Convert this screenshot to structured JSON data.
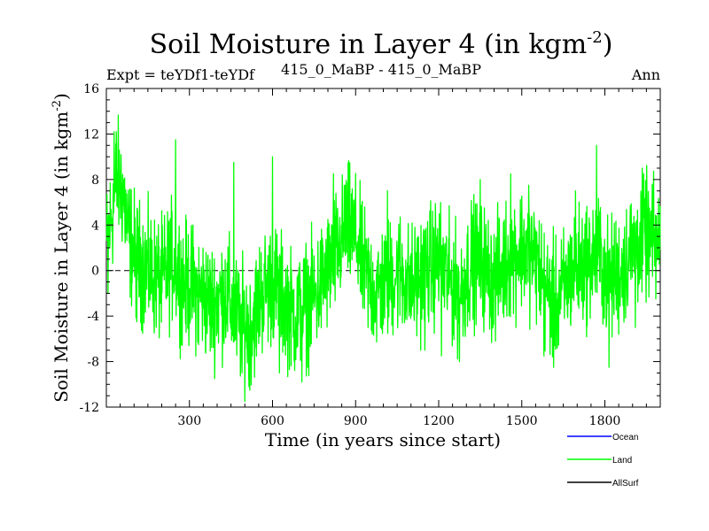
{
  "chart_data": {
    "type": "line",
    "title": "Soil Moisture in Layer 4 (in kgm",
    "title_sup": "-2",
    "title_close": ")",
    "subtitle_left": "Expt = teYDf1-teYDf",
    "subtitle_center": "415_0_MaBP - 415_0_MaBP",
    "subtitle_right": "Ann",
    "xlabel": "Time (in years since start)",
    "ylabel": "Soil Moisture in Layer 4 (in kgm",
    "ylabel_sup": "-2",
    "ylabel_close": ")",
    "xlim": [
      0,
      2000
    ],
    "ylim": [
      -12,
      16
    ],
    "xticks": [
      300,
      600,
      900,
      1200,
      1500,
      1800
    ],
    "yticks": [
      -12,
      -8,
      -4,
      0,
      4,
      8,
      12,
      16
    ],
    "zero_line": true,
    "series": [
      {
        "name": "Land",
        "color": "#00ff00",
        "anchors": [
          [
            0,
            2
          ],
          [
            20,
            5
          ],
          [
            40,
            8
          ],
          [
            60,
            7
          ],
          [
            80,
            3
          ],
          [
            110,
            1
          ],
          [
            150,
            0
          ],
          [
            200,
            -1
          ],
          [
            240,
            1
          ],
          [
            280,
            -1
          ],
          [
            320,
            -1.5
          ],
          [
            380,
            -3
          ],
          [
            430,
            -2
          ],
          [
            480,
            -4.5
          ],
          [
            520,
            -5
          ],
          [
            560,
            -2
          ],
          [
            600,
            -1
          ],
          [
            640,
            -2.5
          ],
          [
            680,
            -4
          ],
          [
            720,
            -3
          ],
          [
            760,
            -2
          ],
          [
            800,
            0
          ],
          [
            840,
            2
          ],
          [
            870,
            4
          ],
          [
            900,
            3
          ],
          [
            930,
            0
          ],
          [
            970,
            -2
          ],
          [
            1010,
            -1
          ],
          [
            1060,
            0
          ],
          [
            1100,
            -1.5
          ],
          [
            1150,
            0
          ],
          [
            1200,
            1
          ],
          [
            1240,
            -1
          ],
          [
            1280,
            -2
          ],
          [
            1320,
            1
          ],
          [
            1360,
            0.5
          ],
          [
            1400,
            -1
          ],
          [
            1450,
            1
          ],
          [
            1500,
            2
          ],
          [
            1550,
            1
          ],
          [
            1590,
            -2
          ],
          [
            1630,
            -3
          ],
          [
            1680,
            0
          ],
          [
            1720,
            0.5
          ],
          [
            1780,
            1.5
          ],
          [
            1810,
            -1
          ],
          [
            1860,
            0
          ],
          [
            1900,
            2
          ],
          [
            1950,
            3
          ],
          [
            2000,
            2
          ]
        ],
        "noise": 2.6,
        "spikes": [
          [
            6,
            -2
          ],
          [
            28,
            12.2
          ],
          [
            36,
            12.2
          ],
          [
            110,
            -4.5
          ],
          [
            250,
            11.5
          ],
          [
            270,
            -6.5
          ],
          [
            333,
            -6.5
          ],
          [
            460,
            9.5
          ],
          [
            490,
            -9
          ],
          [
            515,
            -10.2
          ],
          [
            600,
            10
          ],
          [
            625,
            -9
          ],
          [
            706,
            -9.8
          ],
          [
            820,
            8.5
          ],
          [
            862,
            7.5
          ],
          [
            1015,
            7
          ],
          [
            1150,
            -7
          ],
          [
            1210,
            -7.5
          ],
          [
            1275,
            -8
          ],
          [
            1350,
            8
          ],
          [
            1460,
            8.5
          ],
          [
            1525,
            7.5
          ],
          [
            1580,
            -7.5
          ],
          [
            1615,
            -8.5
          ],
          [
            1694,
            7
          ],
          [
            1770,
            11
          ],
          [
            1815,
            -8.5
          ],
          [
            1910,
            -5
          ],
          [
            1940,
            8.5
          ]
        ]
      },
      {
        "name": "Ocean",
        "color": "#0000ff"
      },
      {
        "name": "AllSurf",
        "color": "#000000"
      }
    ],
    "legend": [
      "Ocean",
      "Land",
      "AllSurf"
    ],
    "legend_position": "bottom-right"
  }
}
